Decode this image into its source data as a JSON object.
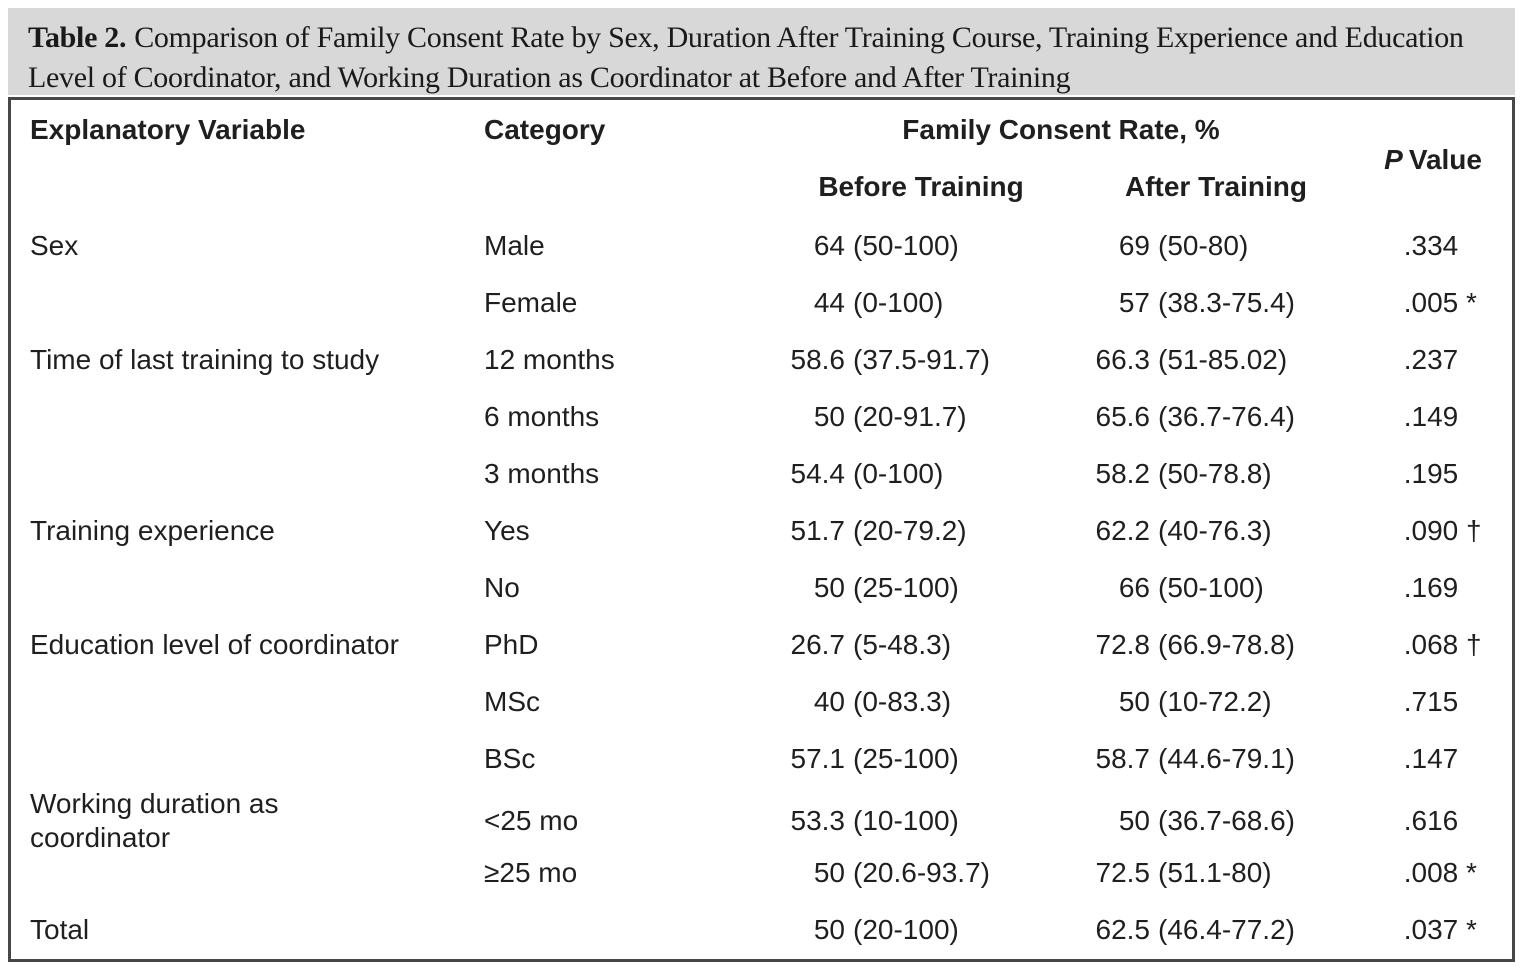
{
  "title": {
    "label": "Table 2.",
    "text": "Comparison of Family Consent Rate by Sex, Duration After Training Course, Training Experience and Education Level of Coordinator, and Working Duration as Coordinator at Before and After Training"
  },
  "table": {
    "headers": {
      "explanatory_variable": "Explanatory Variable",
      "category": "Category",
      "family_consent_rate": "Family Consent Rate, %",
      "before_training": "Before Training",
      "after_training": "After Training",
      "p_value_italic": "P",
      "p_value_rest": "Value"
    },
    "rows": [
      {
        "variable": "Sex",
        "category": "Male",
        "before": "64 (50-100)",
        "after": "69 (50-80)",
        "p": ".334"
      },
      {
        "variable": "",
        "category": "Female",
        "before": "44 (0-100)",
        "after": "57 (38.3-75.4)",
        "p": ".005*"
      },
      {
        "variable": "Time of last training to study",
        "category": "12 months",
        "before": "58.6 (37.5-91.7)",
        "after": "66.3 (51-85.02)",
        "p": ".237"
      },
      {
        "variable": "",
        "category": "6 months",
        "before": "50 (20-91.7)",
        "after": "65.6 (36.7-76.4)",
        "p": ".149"
      },
      {
        "variable": "",
        "category": "3 months",
        "before": "54.4 (0-100)",
        "after": "58.2 (50-78.8)",
        "p": ".195"
      },
      {
        "variable": "Training experience",
        "category": "Yes",
        "before": "51.7 (20-79.2)",
        "after": "62.2 (40-76.3)",
        "p": ".090†"
      },
      {
        "variable": "",
        "category": "No",
        "before": "50 (25-100)",
        "after": "66 (50-100)",
        "p": ".169"
      },
      {
        "variable": "Education level of coordinator",
        "category": "PhD",
        "before": "26.7 (5-48.3)",
        "after": "72.8 (66.9-78.8)",
        "p": ".068†"
      },
      {
        "variable": "",
        "category": "MSc",
        "before": "40 (0-83.3)",
        "after": "50 (10-72.2)",
        "p": ".715"
      },
      {
        "variable": "",
        "category": "BSc",
        "before": "57.1 (25-100)",
        "after": "58.7 (44.6-79.1)",
        "p": ".147"
      },
      {
        "variable": "Working duration as coordinator",
        "category": "<25 mo",
        "before": "53.3 (10-100)",
        "after": "50 (36.7-68.6)",
        "p": ".616"
      },
      {
        "variable": "",
        "category": "≥25 mo",
        "before": "50 (20.6-93.7)",
        "after": "72.5 (51.1-80)",
        "p": ".008*"
      },
      {
        "variable": "Total",
        "category": "",
        "before": "50 (20-100)",
        "after": "62.5 (46.4-77.2)",
        "p": ".037*"
      }
    ]
  },
  "colors": {
    "title_band": "#d8d8d8",
    "border": "#474747",
    "text": "#1f1f1f"
  }
}
